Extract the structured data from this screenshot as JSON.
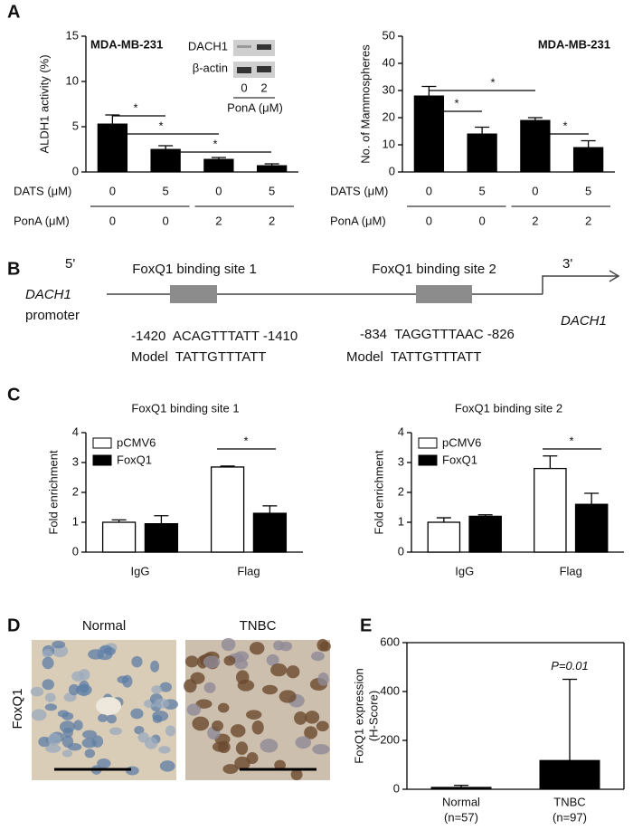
{
  "panel_labels": [
    "A",
    "B",
    "C",
    "D",
    "E"
  ],
  "chart_data": [
    {
      "type": "bar",
      "ylabel": "ALDH1 activity (%)",
      "annotation": "MDA-MB-231",
      "color": "#000000",
      "values": [
        5.3,
        2.5,
        1.4,
        0.7
      ],
      "errors": [
        1.0,
        0.4,
        0.2,
        0.2
      ],
      "rows": [
        {
          "label": "DATS (μM)",
          "values": [
            "0",
            "5",
            "0",
            "5"
          ]
        },
        {
          "label": "PonA (μM)",
          "values": [
            "0",
            "0",
            "2",
            "2"
          ]
        }
      ],
      "ylim": [
        0,
        15
      ],
      "yticks": [
        0,
        5,
        10,
        15
      ],
      "significance": [
        "*",
        "*",
        "*"
      ],
      "inset": {
        "bands": [
          "DACH1",
          "β-actin"
        ],
        "lanes": [
          "0",
          "2"
        ],
        "label": "PonA (μM)"
      }
    },
    {
      "type": "bar",
      "ylabel": "No. of Mammospheres",
      "annotation": "MDA-MB-231",
      "color": "#000000",
      "values": [
        28,
        14,
        19,
        9
      ],
      "errors": [
        3.5,
        2.5,
        1.0,
        2.5
      ],
      "rows": [
        {
          "label": "DATS (μM)",
          "values": [
            "0",
            "5",
            "0",
            "5"
          ]
        },
        {
          "label": "PonA (μM)",
          "values": [
            "0",
            "0",
            "2",
            "2"
          ]
        }
      ],
      "ylim": [
        0,
        50
      ],
      "yticks": [
        0,
        10,
        20,
        30,
        40,
        50
      ],
      "significance": [
        "*",
        "*",
        "*"
      ]
    },
    {
      "type": "grouped-bar",
      "title": "FoxQ1 binding site 1",
      "ylabel": "Fold enrichment",
      "categories": [
        "IgG",
        "Flag"
      ],
      "series": [
        {
          "name": "pCMV6",
          "color": "#ffffff",
          "values": [
            1.0,
            2.85
          ],
          "errors": [
            0.08,
            0.03
          ]
        },
        {
          "name": "FoxQ1",
          "color": "#000000",
          "values": [
            0.95,
            1.3
          ],
          "errors": [
            0.27,
            0.25
          ]
        }
      ],
      "ylim": [
        0,
        4
      ],
      "yticks": [
        0,
        1,
        2,
        3,
        4
      ],
      "significance": [
        "*"
      ]
    },
    {
      "type": "grouped-bar",
      "title": "FoxQ1 binding site 2",
      "ylabel": "Fold enrichment",
      "categories": [
        "IgG",
        "Flag"
      ],
      "series": [
        {
          "name": "pCMV6",
          "color": "#ffffff",
          "values": [
            1.0,
            2.8
          ],
          "errors": [
            0.15,
            0.42
          ]
        },
        {
          "name": "FoxQ1",
          "color": "#000000",
          "values": [
            1.2,
            1.6
          ],
          "errors": [
            0.05,
            0.37
          ]
        }
      ],
      "ylim": [
        0,
        4
      ],
      "yticks": [
        0,
        1,
        2,
        3,
        4
      ],
      "significance": [
        "*"
      ]
    },
    {
      "type": "bar",
      "ylabel": [
        "FoxQ1 expression",
        "(H-Score)"
      ],
      "color": "#000000",
      "categories": [
        "Normal",
        "TNBC"
      ],
      "sample_sizes": [
        "(n=57)",
        "(n=97)"
      ],
      "values": [
        8,
        118
      ],
      "errors": [
        8,
        332
      ],
      "annotation": "P=0.01",
      "ylim": [
        0,
        600
      ],
      "yticks": [
        0,
        200,
        400,
        600
      ]
    }
  ],
  "diagram": {
    "five_prime": "5'",
    "three_prime": "3'",
    "gene": "DACH1",
    "promoter": "promoter",
    "gene_right": "DACH1",
    "sites": [
      {
        "title": "FoxQ1 binding site 1",
        "sequence": "-1420  ACAGTTTATT -1410",
        "model": "Model  TATTGTTTATT"
      },
      {
        "title": "FoxQ1 binding site 2",
        "sequence": "-834  TAGGTTTAAC -826",
        "model": "Model  TATTGTTTATT"
      }
    ]
  },
  "images": {
    "left": "Normal",
    "right": "TNBC",
    "stain": "FoxQ1"
  }
}
